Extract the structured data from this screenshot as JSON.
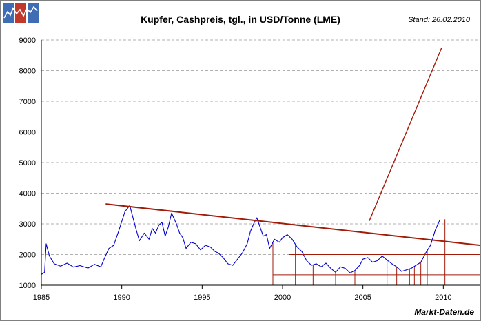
{
  "title": "Kupfer, Cashpreis, tgl., in USD/Tonne (LME)",
  "stand": "Stand: 26.02.2010",
  "source": "Markt-Daten.de",
  "colors": {
    "price_line": "#0000cc",
    "trend_line": "#a11b0a",
    "grid": "#b0b0b0",
    "logo_blue": "#2a5a9e",
    "logo_red": "#c0392b"
  },
  "chart_data": {
    "type": "line",
    "title": "Kupfer, Cashpreis, tgl., in USD/Tonne (LME)",
    "xlabel": "",
    "ylabel": "",
    "xlim": [
      1985.0,
      2012.3
    ],
    "ylim": [
      1000,
      9000
    ],
    "x_ticks": [
      1985,
      1990,
      1995,
      2000,
      2005,
      2010
    ],
    "y_ticks": [
      1000,
      2000,
      3000,
      4000,
      5000,
      6000,
      7000,
      8000,
      9000
    ],
    "grid": "horizontal dashed",
    "series": [
      {
        "values": [
          [
            1985.0,
            1350
          ],
          [
            1985.2,
            1420
          ],
          [
            1985.3,
            2350
          ],
          [
            1985.5,
            1950
          ],
          [
            1985.8,
            1700
          ],
          [
            1986.2,
            1620
          ],
          [
            1986.6,
            1720
          ],
          [
            1987.0,
            1590
          ],
          [
            1987.4,
            1640
          ],
          [
            1987.9,
            1560
          ],
          [
            1988.3,
            1680
          ],
          [
            1988.7,
            1600
          ],
          [
            1988.9,
            1850
          ],
          [
            1989.2,
            2200
          ],
          [
            1989.5,
            2300
          ],
          [
            1989.8,
            2750
          ],
          [
            1990.0,
            3080
          ],
          [
            1990.2,
            3400
          ],
          [
            1990.5,
            3600
          ],
          [
            1990.7,
            3200
          ],
          [
            1990.9,
            2800
          ],
          [
            1991.1,
            2450
          ],
          [
            1991.4,
            2700
          ],
          [
            1991.7,
            2500
          ],
          [
            1991.9,
            2850
          ],
          [
            1992.1,
            2700
          ],
          [
            1992.3,
            2950
          ],
          [
            1992.5,
            3050
          ],
          [
            1992.7,
            2600
          ],
          [
            1992.9,
            2900
          ],
          [
            1993.1,
            3350
          ],
          [
            1993.4,
            3000
          ],
          [
            1993.6,
            2700
          ],
          [
            1993.8,
            2550
          ],
          [
            1994.0,
            2200
          ],
          [
            1994.3,
            2400
          ],
          [
            1994.6,
            2350
          ],
          [
            1994.9,
            2150
          ],
          [
            1995.2,
            2300
          ],
          [
            1995.5,
            2250
          ],
          [
            1995.8,
            2100
          ],
          [
            1996.0,
            2050
          ],
          [
            1996.3,
            1900
          ],
          [
            1996.6,
            1700
          ],
          [
            1996.9,
            1650
          ],
          [
            1997.2,
            1850
          ],
          [
            1997.5,
            2050
          ],
          [
            1997.8,
            2350
          ],
          [
            1998.0,
            2750
          ],
          [
            1998.2,
            3000
          ],
          [
            1998.4,
            3200
          ],
          [
            1998.6,
            2900
          ],
          [
            1998.8,
            2600
          ],
          [
            1999.0,
            2650
          ],
          [
            1999.2,
            2200
          ],
          [
            1999.5,
            2500
          ],
          [
            1999.8,
            2400
          ],
          [
            2000.0,
            2550
          ],
          [
            2000.3,
            2650
          ],
          [
            2000.6,
            2500
          ],
          [
            2000.9,
            2250
          ],
          [
            2001.2,
            2100
          ],
          [
            2001.5,
            1800
          ],
          [
            2001.8,
            1650
          ],
          [
            2002.1,
            1700
          ],
          [
            2002.4,
            1600
          ],
          [
            2002.7,
            1720
          ],
          [
            2003.0,
            1550
          ],
          [
            2003.3,
            1420
          ],
          [
            2003.6,
            1600
          ],
          [
            2003.9,
            1550
          ],
          [
            2004.2,
            1400
          ],
          [
            2004.5,
            1480
          ],
          [
            2004.8,
            1650
          ],
          [
            2005.0,
            1850
          ],
          [
            2005.3,
            1900
          ],
          [
            2005.6,
            1750
          ],
          [
            2005.9,
            1800
          ],
          [
            2006.2,
            1950
          ],
          [
            2006.5,
            1820
          ],
          [
            2006.8,
            1700
          ],
          [
            2007.1,
            1600
          ],
          [
            2007.4,
            1450
          ],
          [
            2007.7,
            1500
          ],
          [
            2008.0,
            1550
          ],
          [
            2008.3,
            1650
          ],
          [
            2008.6,
            1750
          ],
          [
            2008.9,
            2050
          ],
          [
            2009.2,
            2300
          ],
          [
            2009.5,
            2800
          ],
          [
            2009.8,
            3150
          ]
        ],
        "color": "#0000cc"
      }
    ],
    "trend_lines": [
      {
        "x": [
          1989.0,
          2012.3
        ],
        "y": [
          3650,
          2300
        ]
      },
      {
        "x": [
          2005.4,
          2009.9
        ],
        "y": [
          3100,
          8750
        ]
      },
      {
        "x": [
          2000.4,
          2012.3
        ],
        "y": [
          2000,
          2000
        ]
      },
      {
        "x": [
          1999.4,
          2012.3
        ],
        "y": [
          1340,
          1340
        ]
      }
    ],
    "vertical_markers": [
      1999.4,
      2000.8,
      2001.9,
      2003.3,
      2004.5,
      2006.5,
      2007.1,
      2007.9,
      2008.2,
      2008.6,
      2009.0,
      2010.1
    ]
  }
}
